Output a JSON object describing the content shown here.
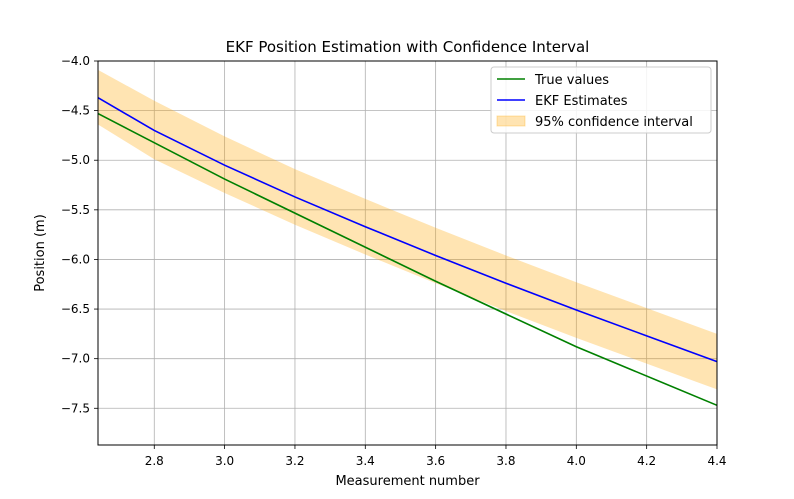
{
  "chart_data": {
    "type": "line",
    "title": "EKF Position Estimation with Confidence Interval",
    "xlabel": "Measurement number",
    "ylabel": "Position (m)",
    "xlim": [
      2.64,
      4.4
    ],
    "ylim": [
      -7.87,
      -4.0
    ],
    "xticks": [
      2.8,
      3.0,
      3.2,
      3.4,
      3.6,
      3.8,
      4.0,
      4.2,
      4.4
    ],
    "xtick_labels": [
      "2.8",
      "3.0",
      "3.2",
      "3.4",
      "3.6",
      "3.8",
      "4.0",
      "4.2",
      "4.4"
    ],
    "yticks": [
      -4.0,
      -4.5,
      -5.0,
      -5.5,
      -6.0,
      -6.5,
      -7.0,
      -7.5
    ],
    "ytick_labels": [
      "−4.0",
      "−4.5",
      "−5.0",
      "−5.5",
      "−6.0",
      "−6.5",
      "−7.0",
      "−7.5"
    ],
    "grid": true,
    "legend_position": "top-right",
    "series": [
      {
        "name": "True values",
        "kind": "line",
        "color": "#008000",
        "x": [
          2.64,
          3.0,
          3.6,
          4.0,
          4.4
        ],
        "y": [
          -4.53,
          -5.19,
          -6.22,
          -6.88,
          -7.47
        ]
      },
      {
        "name": "EKF Estimates",
        "kind": "line",
        "color": "#0000ff",
        "x": [
          2.64,
          2.8,
          3.0,
          3.2,
          3.4,
          3.6,
          3.8,
          4.0,
          4.2,
          4.4
        ],
        "y": [
          -4.37,
          -4.7,
          -5.05,
          -5.37,
          -5.67,
          -5.96,
          -6.24,
          -6.51,
          -6.77,
          -7.03
        ]
      },
      {
        "name": "95% confidence interval",
        "kind": "band",
        "color": "#ffa500",
        "x": [
          2.64,
          2.8,
          3.0,
          3.2,
          3.4,
          3.6,
          3.8,
          4.0,
          4.2,
          4.4
        ],
        "upper": [
          -4.09,
          -4.4,
          -4.76,
          -5.09,
          -5.39,
          -5.68,
          -5.96,
          -6.23,
          -6.49,
          -6.75
        ],
        "lower": [
          -4.64,
          -4.99,
          -5.33,
          -5.65,
          -5.95,
          -6.24,
          -6.52,
          -6.79,
          -7.05,
          -7.31
        ]
      }
    ]
  }
}
